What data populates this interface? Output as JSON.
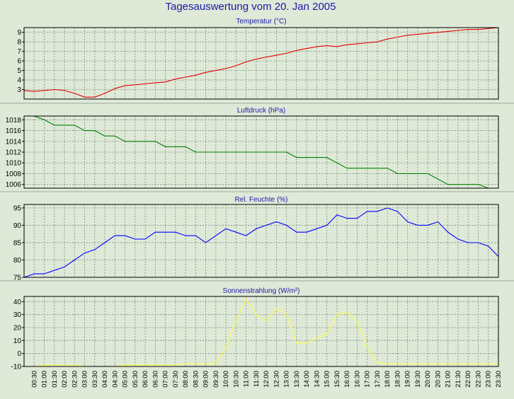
{
  "page": {
    "title": "Tagesauswertung vom 20. Jan 2005",
    "time_labels": [
      "00:30",
      "01:00",
      "01:30",
      "02:00",
      "02:30",
      "03:00",
      "03:30",
      "04:00",
      "04:30",
      "05:00",
      "05:30",
      "06:00",
      "06:30",
      "07:00",
      "07:30",
      "08:00",
      "08:30",
      "09:00",
      "09:30",
      "10:00",
      "10:30",
      "11:00",
      "11:30",
      "12:00",
      "12:30",
      "13:00",
      "13:30",
      "14:00",
      "14:30",
      "15:00",
      "15:30",
      "16:00",
      "16:30",
      "17:00",
      "17:30",
      "18:00",
      "18:30",
      "19:00",
      "19:30",
      "20:00",
      "20:30",
      "21:00",
      "21:30",
      "22:00",
      "22:30",
      "23:00",
      "23:30"
    ]
  },
  "chart_data": [
    {
      "type": "line",
      "title": "Temperatur (°C)",
      "ylim": [
        2,
        9.5
      ],
      "yticks": [
        3,
        4,
        5,
        6,
        7,
        8,
        9
      ],
      "color": "#e00000",
      "x": [
        "00:00",
        "00:30",
        "01:00",
        "01:30",
        "02:00",
        "02:30",
        "03:00",
        "03:30",
        "04:00",
        "04:30",
        "05:00",
        "05:30",
        "06:00",
        "06:30",
        "07:00",
        "07:30",
        "08:00",
        "08:30",
        "09:00",
        "09:30",
        "10:00",
        "10:30",
        "11:00",
        "11:30",
        "12:00",
        "12:30",
        "13:00",
        "13:30",
        "14:00",
        "14:30",
        "15:00",
        "15:30",
        "16:00",
        "16:30",
        "17:00",
        "17:30",
        "18:00",
        "18:30",
        "19:00",
        "19:30",
        "20:00",
        "20:30",
        "21:00",
        "21:30",
        "22:00",
        "22:30",
        "23:00",
        "23:30"
      ],
      "values": [
        2.9,
        2.8,
        2.9,
        3.0,
        2.9,
        2.6,
        2.2,
        2.2,
        2.6,
        3.1,
        3.4,
        3.5,
        3.6,
        3.7,
        3.8,
        4.1,
        4.3,
        4.5,
        4.8,
        5.0,
        5.2,
        5.5,
        5.9,
        6.2,
        6.4,
        6.6,
        6.8,
        7.1,
        7.3,
        7.5,
        7.6,
        7.5,
        7.7,
        7.8,
        7.9,
        8.0,
        8.3,
        8.5,
        8.7,
        8.8,
        8.9,
        9.0,
        9.1,
        9.2,
        9.3,
        9.3,
        9.4,
        9.5
      ],
      "grid": true
    },
    {
      "type": "line",
      "title": "Luftdruck (hPa)",
      "ylim": [
        1005.3,
        1018.7
      ],
      "yticks": [
        1006,
        1008,
        1010,
        1012,
        1014,
        1016,
        1018
      ],
      "color": "#008000",
      "x": [
        "00:00",
        "00:30",
        "01:00",
        "01:30",
        "02:00",
        "02:30",
        "03:00",
        "03:30",
        "04:00",
        "04:30",
        "05:00",
        "05:30",
        "06:00",
        "06:30",
        "07:00",
        "07:30",
        "08:00",
        "08:30",
        "09:00",
        "09:30",
        "10:00",
        "10:30",
        "11:00",
        "11:30",
        "12:00",
        "12:30",
        "13:00",
        "13:30",
        "14:00",
        "14:30",
        "15:00",
        "15:30",
        "16:00",
        "16:30",
        "17:00",
        "17:30",
        "18:00",
        "18:30",
        "19:00",
        "19:30",
        "20:00",
        "20:30",
        "21:00",
        "21:30",
        "22:00",
        "22:30",
        "23:00",
        "23:30"
      ],
      "values": [
        1019,
        1019,
        1018,
        1017,
        1017,
        1017,
        1016,
        1016,
        1015,
        1015,
        1014,
        1014,
        1014,
        1014,
        1013,
        1013,
        1013,
        1012,
        1012,
        1012,
        1012,
        1012,
        1012,
        1012,
        1012,
        1012,
        1012,
        1011,
        1011,
        1011,
        1011,
        1010,
        1009,
        1009,
        1009,
        1009,
        1009,
        1008,
        1008,
        1008,
        1008,
        1007,
        1006,
        1006,
        1006,
        1006,
        1005,
        1005
      ],
      "grid": true
    },
    {
      "type": "line",
      "title": "Rel. Feuchte (%)",
      "ylim": [
        75,
        96
      ],
      "yticks": [
        75,
        80,
        85,
        90,
        95
      ],
      "color": "#0000ff",
      "x": [
        "00:00",
        "00:30",
        "01:00",
        "01:30",
        "02:00",
        "02:30",
        "03:00",
        "03:30",
        "04:00",
        "04:30",
        "05:00",
        "05:30",
        "06:00",
        "06:30",
        "07:00",
        "07:30",
        "08:00",
        "08:30",
        "09:00",
        "09:30",
        "10:00",
        "10:30",
        "11:00",
        "11:30",
        "12:00",
        "12:30",
        "13:00",
        "13:30",
        "14:00",
        "14:30",
        "15:00",
        "15:30",
        "16:00",
        "16:30",
        "17:00",
        "17:30",
        "18:00",
        "18:30",
        "19:00",
        "19:30",
        "20:00",
        "20:30",
        "21:00",
        "21:30",
        "22:00",
        "22:30",
        "23:00",
        "23:30"
      ],
      "values": [
        75,
        76,
        76,
        77,
        78,
        80,
        82,
        83,
        85,
        87,
        87,
        86,
        86,
        88,
        88,
        88,
        87,
        87,
        85,
        87,
        89,
        88,
        87,
        89,
        90,
        91,
        90,
        88,
        88,
        89,
        90,
        93,
        92,
        92,
        94,
        94,
        95,
        94,
        91,
        90,
        90,
        91,
        88,
        86,
        85,
        85,
        84,
        81
      ],
      "grid": true
    },
    {
      "type": "line",
      "title": "Sonnenstrahlung (W/m²)",
      "ylim": [
        -10,
        44
      ],
      "yticks": [
        -10,
        0,
        10,
        20,
        30,
        40
      ],
      "color": "#ffff40",
      "x": [
        "00:00",
        "00:30",
        "01:00",
        "01:30",
        "02:00",
        "02:30",
        "03:00",
        "03:30",
        "04:00",
        "04:30",
        "05:00",
        "05:30",
        "06:00",
        "06:30",
        "07:00",
        "07:30",
        "08:00",
        "08:30",
        "09:00",
        "09:30",
        "10:00",
        "10:30",
        "11:00",
        "11:30",
        "12:00",
        "12:30",
        "13:00",
        "13:30",
        "14:00",
        "14:30",
        "15:00",
        "15:30",
        "16:00",
        "16:30",
        "17:00",
        "17:30",
        "18:00",
        "18:30",
        "19:00",
        "19:30",
        "20:00",
        "20:30",
        "21:00",
        "21:30",
        "22:00",
        "22:30",
        "23:00",
        "23:30"
      ],
      "values": [
        -10,
        -10,
        -9,
        -9,
        -9,
        -9,
        -10,
        -10,
        -10,
        -10,
        -9,
        -9,
        -9,
        -9,
        -9,
        -9,
        -8,
        -8,
        -8,
        -8,
        5,
        25,
        42,
        30,
        25,
        35,
        30,
        8,
        8,
        12,
        15,
        30,
        32,
        25,
        5,
        -7,
        -8,
        -8,
        -8,
        -8,
        -8,
        -8,
        -8,
        -8,
        -8,
        -8,
        -8,
        -8
      ],
      "grid": true
    }
  ]
}
